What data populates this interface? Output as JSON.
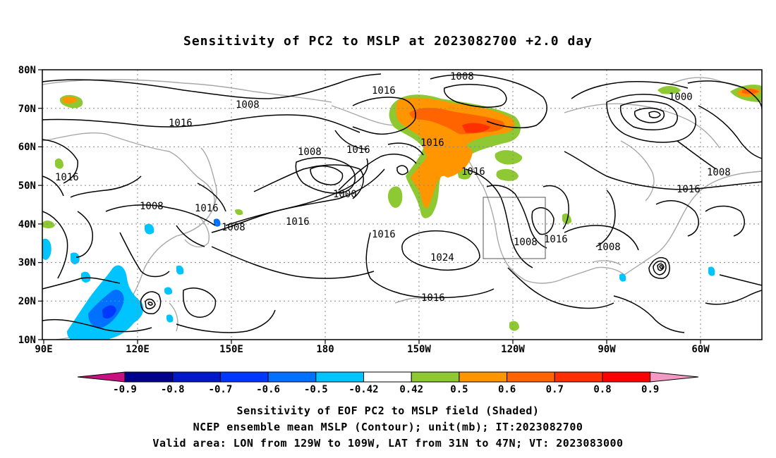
{
  "title": "Sensitivity of PC2 to MSLP at 2023082700 +2.0 day",
  "axes": {
    "lat_labels": [
      "80N",
      "70N",
      "60N",
      "50N",
      "40N",
      "30N",
      "20N",
      "10N"
    ],
    "lon_labels": [
      "90E",
      "120E",
      "150E",
      "180",
      "150W",
      "120W",
      "90W",
      "60W"
    ]
  },
  "contour_labels": {
    "c1008": "1008",
    "c1016": "1016",
    "c1000": "1000",
    "c1024": "1024"
  },
  "colorbar": {
    "tick_labels": [
      "-0.9",
      "-0.8",
      "-0.7",
      "-0.6",
      "-0.5",
      "-0.42",
      "0.42",
      "0.5",
      "0.6",
      "0.7",
      "0.8",
      "0.9"
    ],
    "colors": [
      "#c8107f",
      "#00008c",
      "#0018c8",
      "#0038ff",
      "#0070ff",
      "#00c4ff",
      "#ffffff",
      "#8ec832",
      "#ff9600",
      "#ff6400",
      "#ff3000",
      "#ff0000",
      "#f39ac4"
    ]
  },
  "captions": {
    "line1": "Sensitivity of EOF PC2 to MSLP field (Shaded)",
    "line2": "NCEP ensemble mean MSLP (Contour); unit(mb); IT:2023082700",
    "line3": "Valid area: LON from 129W to 109W, LAT from 31N to 47N; VT: 2023083000"
  }
}
